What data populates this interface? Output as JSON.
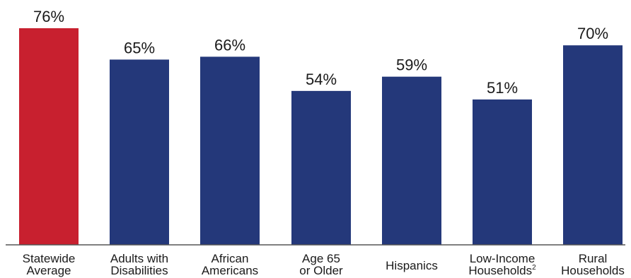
{
  "chart_data": {
    "type": "bar",
    "categories": [
      [
        "Statewide",
        "Average"
      ],
      [
        "Adults with",
        "Disabilities"
      ],
      [
        "African",
        "Americans"
      ],
      [
        "Age 65",
        "or Older"
      ],
      [
        "Hispanics"
      ],
      [
        "Low-Income",
        "Households"
      ],
      [
        "Rural",
        "Households"
      ]
    ],
    "category_superscripts": [
      "",
      "",
      "",
      "",
      "",
      "2",
      ""
    ],
    "values": [
      76,
      65,
      66,
      54,
      59,
      51,
      70
    ],
    "value_labels": [
      "76%",
      "65%",
      "66%",
      "54%",
      "59%",
      "51%",
      "70%"
    ],
    "unit": "%",
    "ylim": [
      0,
      80
    ],
    "grid": false,
    "legend": "none",
    "colors": {
      "highlight": "#c8202f",
      "default": "#24387a",
      "baseline": "#555555"
    },
    "highlight_index": 0
  }
}
